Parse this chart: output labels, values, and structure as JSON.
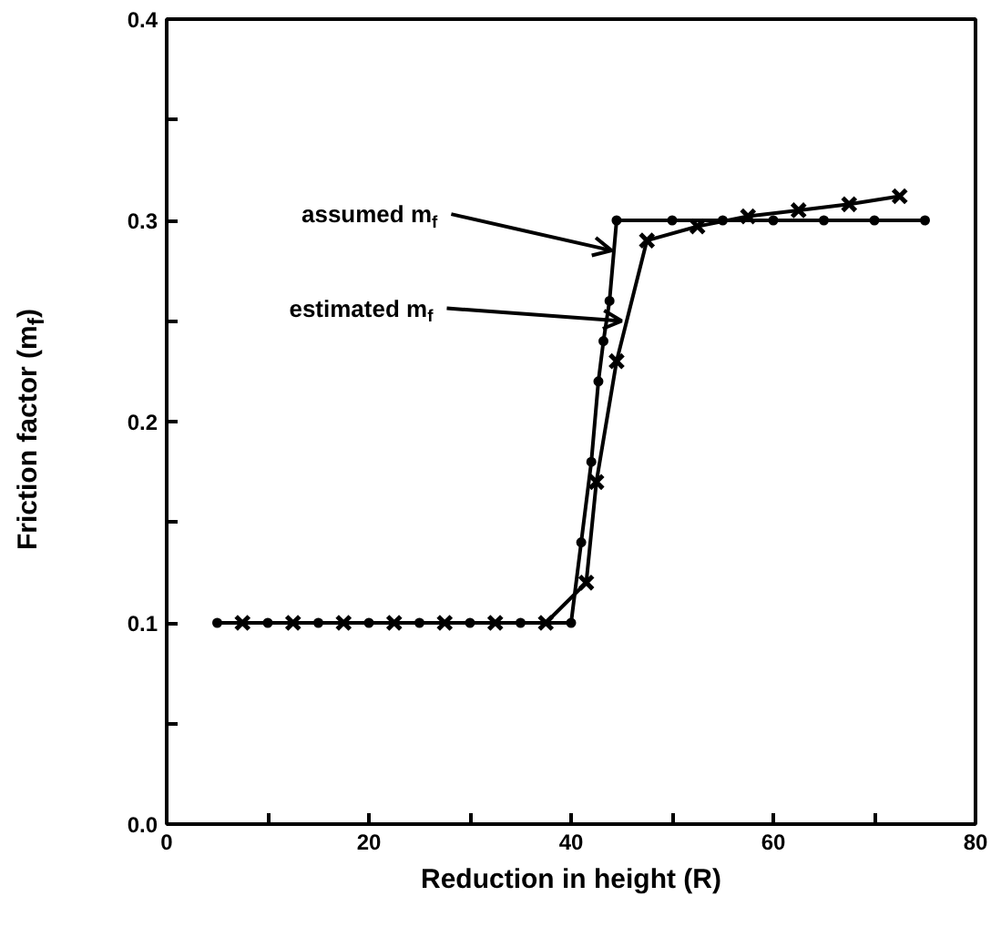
{
  "chart_data": {
    "type": "line",
    "xlabel": "Reduction in height (R)",
    "ylabel": "Friction factor (m$_{f}$)",
    "xlim": [
      0,
      80
    ],
    "ylim": [
      0,
      0.4
    ],
    "xticks": [
      0,
      {
        "value": 10,
        "label": null
      },
      20,
      {
        "value": 30,
        "label": null
      },
      40,
      {
        "value": 50,
        "label": null
      },
      60,
      {
        "value": 70,
        "label": null
      },
      80
    ],
    "yticks": [
      {
        "value": 0,
        "label": "0.0"
      },
      {
        "value": 0.05,
        "label": null
      },
      0.1,
      {
        "value": 0.15,
        "label": null
      },
      0.2,
      {
        "value": 0.25,
        "label": null
      },
      0.3,
      {
        "value": 0.35,
        "label": null
      },
      0.4
    ],
    "series": [
      {
        "color": "#000000",
        "marker": "circle",
        "x": [
          5,
          10,
          15,
          20,
          25,
          30,
          35,
          40,
          41,
          42,
          42.7,
          43.2,
          43.8,
          44.5,
          50,
          55,
          60,
          65,
          70,
          75
        ],
        "values": [
          0.1,
          0.1,
          0.1,
          0.1,
          0.1,
          0.1,
          0.1,
          0.1,
          0.14,
          0.18,
          0.22,
          0.24,
          0.26,
          0.3,
          0.3,
          0.3,
          0.3,
          0.3,
          0.3,
          0.3
        ]
      },
      {
        "color": "#000000",
        "marker": "cross",
        "x": [
          7.5,
          12.5,
          17.5,
          22.5,
          27.5,
          32.5,
          37.5,
          41.5,
          42.5,
          44.5,
          47.5,
          52.5,
          57.5,
          62.5,
          67.5,
          72.5
        ],
        "values": [
          0.1,
          0.1,
          0.1,
          0.1,
          0.1,
          0.1,
          0.1,
          0.12,
          0.17,
          0.23,
          0.29,
          0.297,
          0.302,
          0.305,
          0.308,
          0.312
        ]
      }
    ],
    "annotations": [
      {
        "text": "assumed m$_{f}$",
        "x": 44,
        "y": 0.285
      },
      {
        "text": "estimated m$_{f}$",
        "x": 45,
        "y": 0.25
      }
    ]
  }
}
